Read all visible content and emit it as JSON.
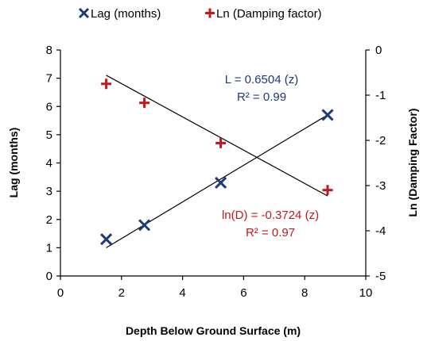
{
  "chart_data": {
    "type": "scatter",
    "xlabel": "Depth  Below Ground Surface (m)",
    "ylabel_left": "Lag (months)",
    "ylabel_right": "Ln (Damping Factor)",
    "xlim": [
      0,
      10
    ],
    "ylim_left": [
      0,
      8
    ],
    "ylim_right": [
      -5,
      0
    ],
    "x_ticks": [
      "0",
      "2",
      "4",
      "6",
      "8",
      "10"
    ],
    "y_left_ticks": [
      "0",
      "1",
      "2",
      "3",
      "4",
      "5",
      "6",
      "7",
      "8"
    ],
    "y_right_ticks": [
      "0",
      "-1",
      "-2",
      "-3",
      "-4",
      "-5"
    ],
    "grid": false,
    "legend_position": "top",
    "series": [
      {
        "name": "Lag (months)",
        "axis": "left",
        "marker": "x",
        "color": "#1f3a7a",
        "x": [
          1.5,
          2.75,
          5.25,
          8.75
        ],
        "y": [
          1.3,
          1.8,
          3.3,
          5.7
        ],
        "trendline": {
          "x": [
            1.5,
            8.75
          ],
          "y": [
            1.0,
            5.7
          ]
        }
      },
      {
        "name": "Ln (Damping factor)",
        "axis": "right",
        "marker": "+",
        "color": "#c0191e",
        "x": [
          1.5,
          2.75,
          5.25,
          8.75
        ],
        "y": [
          -0.75,
          -1.17,
          -2.06,
          -3.1
        ],
        "trendline": {
          "x": [
            1.5,
            8.75
          ],
          "y": [
            -0.56,
            -3.23
          ]
        }
      }
    ],
    "annotations": [
      {
        "lines": [
          "L = 0.6504 (z)",
          "R² = 0.99"
        ],
        "color": "#1f3a7a"
      },
      {
        "lines": [
          "ln(D) = -0.3724 (z)",
          "R² = 0.97"
        ],
        "color": "#c0191e"
      }
    ]
  }
}
